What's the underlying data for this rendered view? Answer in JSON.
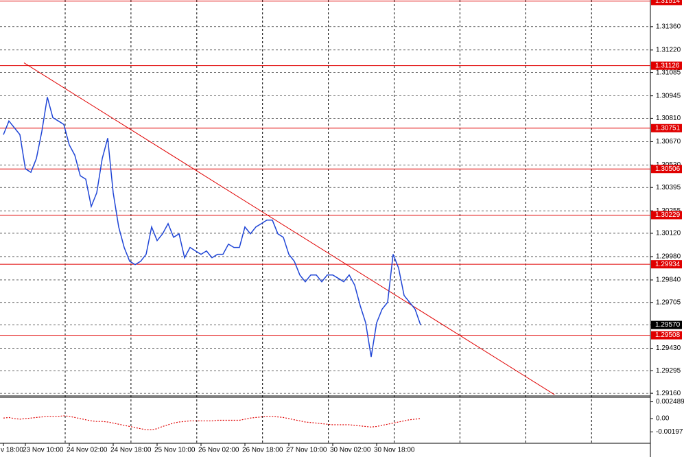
{
  "chart_data": [
    {
      "type": "line",
      "categories": [
        "v 18:00",
        null,
        null,
        null,
        "23 Nov 10:00",
        null,
        null,
        null,
        null,
        null,
        null,
        null,
        "24 Nov 02:00",
        null,
        null,
        null,
        null,
        null,
        null,
        null,
        "24 Nov 18:00",
        null,
        null,
        null,
        null,
        null,
        null,
        null,
        "25 Nov 10:00",
        null,
        null,
        null,
        null,
        null,
        null,
        null,
        "26 Nov 02:00",
        null,
        null,
        null,
        null,
        null,
        null,
        null,
        "26 Nov 18:00",
        null,
        null,
        null,
        null,
        null,
        null,
        null,
        "27 Nov 10:00",
        null,
        null,
        null,
        null,
        null,
        null,
        null,
        "30 Nov 02:00",
        null,
        null,
        null,
        null,
        null,
        null,
        null,
        "30 Nov 18:00",
        null,
        null,
        null,
        null,
        null,
        null,
        null,
        null
      ],
      "values": [
        1.30712,
        1.30794,
        1.30753,
        1.30712,
        1.30507,
        1.30486,
        1.30568,
        1.30732,
        1.30937,
        1.30814,
        1.30794,
        1.30773,
        1.3065,
        1.30589,
        1.30465,
        1.30445,
        1.30281,
        1.30363,
        1.30568,
        1.30691,
        1.30363,
        1.30158,
        1.30035,
        1.29952,
        1.29932,
        1.29952,
        1.29994,
        1.30158,
        1.30076,
        1.30117,
        1.30178,
        1.30096,
        1.30117,
        1.29973,
        1.30035,
        1.30014,
        1.29994,
        1.30014,
        1.29973,
        1.29994,
        1.29994,
        1.30055,
        1.30035,
        1.30035,
        1.30158,
        1.30117,
        1.30158,
        1.30178,
        1.30199,
        1.30199,
        1.30117,
        1.30096,
        1.29994,
        1.29952,
        1.2987,
        1.29829,
        1.2987,
        1.2987,
        1.29829,
        1.2987,
        1.2987,
        1.2985,
        1.29829,
        1.2987,
        1.29809,
        1.29686,
        1.29583,
        1.29378,
        1.29583,
        1.29665,
        1.29706,
        1.29994,
        1.29911,
        1.29747,
        1.29706,
        1.29665,
        1.2957
      ],
      "color": "#1f45d6",
      "ylim": [
        1.29144,
        1.3152
      ],
      "yticks": [
        {
          "value": 1.3136,
          "label": "1.31360"
        },
        {
          "value": 1.3122,
          "label": "1.31220"
        },
        1.31085,
        1.30945,
        {
          "value": 1.3081,
          "label": "1.30810"
        },
        {
          "value": 1.3067,
          "label": "1.30670"
        },
        {
          "value": 1.3053,
          "label": "1.30530"
        },
        1.30395,
        1.30255,
        {
          "value": 1.3012,
          "label": "1.30120"
        },
        {
          "value": 1.2998,
          "label": "1.29980"
        },
        {
          "value": 1.2984,
          "label": "1.29840"
        },
        1.29705,
        {
          "value": 1.2957,
          "label": "1.29570"
        },
        {
          "value": 1.2943,
          "label": "1.29430"
        },
        1.29295,
        {
          "value": 1.2916,
          "label": "1.29160"
        }
      ],
      "grid": true,
      "levels": [
        {
          "value": 1.31514,
          "label": "1.31514"
        },
        {
          "value": 1.31126,
          "label": "1.31126"
        },
        {
          "value": 1.30751,
          "label": "1.30751"
        },
        {
          "value": 1.30506,
          "label": "1.30506"
        },
        {
          "value": 1.30229,
          "label": "1.30229"
        },
        {
          "value": 1.29934,
          "label": "1.29934"
        },
        {
          "value": 1.29508,
          "label": "1.29508"
        }
      ],
      "level_color": "#e00000",
      "current_price": {
        "value": 1.2957,
        "label": "1.29570"
      },
      "trendline": {
        "x": [
          3.75,
          100.4
        ],
        "y": [
          1.31143,
          1.29152
        ],
        "color": "#e00000"
      }
    },
    {
      "type": "line",
      "values": [
        8e-05,
        0.00017,
        0,
        -8e-05,
        0,
        8e-05,
        0.00017,
        0.00025,
        0.00033,
        0.00033,
        0.00033,
        0.00042,
        0.00033,
        0.00017,
        0,
        -0.00017,
        -0.00033,
        -0.00042,
        -0.00042,
        -0.0005,
        -0.00066,
        -0.00083,
        -0.001,
        -0.00116,
        -0.00133,
        -0.00149,
        -0.00166,
        -0.00166,
        -0.00149,
        -0.00116,
        -0.00091,
        -0.00066,
        -0.0005,
        -0.00042,
        -0.00033,
        -0.00033,
        -0.00033,
        -0.00033,
        -0.00033,
        -0.00025,
        -0.00025,
        -0.00025,
        -0.00025,
        -0.00025,
        -8e-05,
        8e-05,
        0.00017,
        0.00025,
        0.00033,
        0.00033,
        0.00025,
        0.00017,
        0,
        -0.00017,
        -0.00033,
        -0.0005,
        -0.00058,
        -0.00066,
        -0.00075,
        -0.00083,
        -0.00091,
        -0.00091,
        -0.00091,
        -0.00091,
        -0.001,
        -0.00108,
        -0.00116,
        -0.00125,
        -0.00116,
        -0.001,
        -0.00083,
        -0.00066,
        -0.0005,
        -0.00033,
        -0.00017,
        -8e-05,
        0
      ],
      "color": "#e00000",
      "line_style": "dotted",
      "ylim": [
        -0.00365,
        0.003153
      ],
      "yticks": [
        0.002489,
        {
          "value": 0,
          "label": "0.00"
        },
        -0.00197
      ]
    }
  ]
}
